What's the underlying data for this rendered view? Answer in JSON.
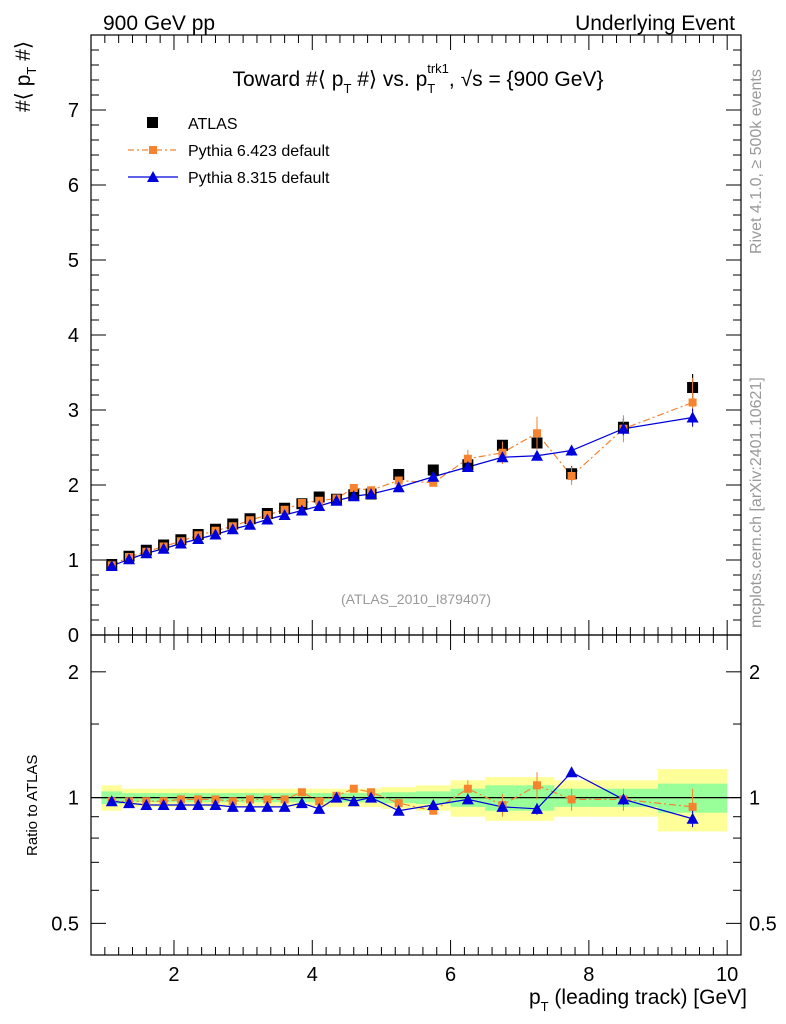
{
  "header": {
    "left_label": "900 GeV pp",
    "right_label": "Underlying Event"
  },
  "side_labels": {
    "rivet": "Rivet 4.1.0, ≥ 500k events",
    "mcplots": "mcplots.cern.ch [arXiv:2401.10621]"
  },
  "colors": {
    "atlas": "#000000",
    "pythia6": "#f5832f",
    "pythia8": "#0000dd",
    "band_outer": "#ffff99",
    "band_inner": "#99ff99"
  },
  "chart_data": [
    {
      "id": "main",
      "type": "scatter",
      "title": "Toward #⟨ p_T #⟩ vs. p_T^trk1, √s = {900 GeV}",
      "title_parts": {
        "a": "Toward #⟨ p",
        "b": " #⟩ vs. p",
        "c": ", ",
        "d": "s = {900 GeV}",
        "sub": "T",
        "sup": "trk1",
        "root": "√"
      },
      "ylabel_parts": {
        "a": "#⟨ p",
        "b": " #⟩",
        "sub": "T"
      },
      "xlim": [
        0.8,
        10.2
      ],
      "ylim": [
        0,
        8
      ],
      "yticks": [
        0,
        1,
        2,
        3,
        4,
        5,
        6,
        7
      ],
      "ytick_labels": [
        "0",
        "1",
        "2",
        "3",
        "4",
        "5",
        "6",
        "7"
      ],
      "watermark": "(ATLAS_2010_I879407)",
      "legend": [
        "ATLAS",
        "Pythia 6.423 default",
        "Pythia 8.315 default"
      ],
      "x": [
        1.1,
        1.35,
        1.6,
        1.85,
        2.1,
        2.35,
        2.6,
        2.85,
        3.1,
        3.35,
        3.6,
        3.85,
        4.1,
        4.35,
        4.6,
        4.85,
        5.25,
        5.75,
        6.25,
        6.75,
        7.25,
        7.75,
        8.5,
        9.5
      ],
      "series": [
        {
          "name": "ATLAS",
          "marker": "square",
          "values": [
            0.94,
            1.05,
            1.13,
            1.2,
            1.27,
            1.34,
            1.41,
            1.48,
            1.55,
            1.62,
            1.69,
            1.75,
            1.84,
            1.81,
            1.87,
            1.88,
            2.14,
            2.2,
            2.27,
            2.53,
            2.56,
            2.15,
            2.77,
            3.3
          ],
          "errors": [
            0.01,
            0.01,
            0.01,
            0.01,
            0.01,
            0.01,
            0.01,
            0.01,
            0.01,
            0.01,
            0.01,
            0.01,
            0.02,
            0.02,
            0.02,
            0.02,
            0.03,
            0.04,
            0.05,
            0.06,
            0.08,
            0.1,
            0.12,
            0.18
          ]
        },
        {
          "name": "Pythia 6.423 default",
          "marker": "square-small",
          "dash": true,
          "values": [
            0.93,
            1.04,
            1.11,
            1.18,
            1.25,
            1.33,
            1.39,
            1.45,
            1.53,
            1.6,
            1.67,
            1.76,
            1.79,
            1.82,
            1.96,
            1.93,
            2.06,
            2.03,
            2.35,
            2.43,
            2.69,
            2.12,
            2.75,
            3.1
          ],
          "errors": [
            0.01,
            0.01,
            0.01,
            0.01,
            0.01,
            0.01,
            0.01,
            0.01,
            0.01,
            0.01,
            0.02,
            0.02,
            0.02,
            0.02,
            0.03,
            0.03,
            0.04,
            0.05,
            0.12,
            0.15,
            0.22,
            0.12,
            0.18,
            0.33
          ]
        },
        {
          "name": "Pythia 8.315 default",
          "marker": "triangle",
          "values": [
            0.92,
            1.01,
            1.09,
            1.15,
            1.22,
            1.28,
            1.34,
            1.41,
            1.47,
            1.54,
            1.6,
            1.66,
            1.72,
            1.79,
            1.85,
            1.88,
            1.97,
            2.11,
            2.24,
            2.37,
            2.39,
            2.46,
            2.75,
            2.9
          ],
          "errors": [
            0.01,
            0.01,
            0.01,
            0.01,
            0.01,
            0.01,
            0.01,
            0.01,
            0.01,
            0.01,
            0.01,
            0.01,
            0.02,
            0.02,
            0.02,
            0.02,
            0.02,
            0.03,
            0.04,
            0.05,
            0.06,
            0.07,
            0.08,
            0.12
          ]
        }
      ]
    },
    {
      "id": "ratio",
      "type": "scatter",
      "ylabel": "Ratio to ATLAS",
      "xlabel_parts": {
        "a": "p",
        "b": " (leading track) [GeV]",
        "sub": "T"
      },
      "xlim": [
        0.8,
        10.2
      ],
      "ylim": [
        0.42,
        2.45
      ],
      "log_y": true,
      "yticks": [
        0.5,
        1,
        2
      ],
      "ytick_labels": [
        "0.5",
        "1",
        "2"
      ],
      "xticks": [
        2,
        4,
        6,
        8,
        10
      ],
      "xtick_labels": [
        "2",
        "4",
        "6",
        "8",
        "10"
      ],
      "bins": [
        [
          0.95,
          1.25
        ],
        [
          1.25,
          1.5
        ],
        [
          1.5,
          1.75
        ],
        [
          1.75,
          2.0
        ],
        [
          2.0,
          2.25
        ],
        [
          2.25,
          2.5
        ],
        [
          2.5,
          2.75
        ],
        [
          2.75,
          3.0
        ],
        [
          3.0,
          3.25
        ],
        [
          3.25,
          3.5
        ],
        [
          3.5,
          3.75
        ],
        [
          3.75,
          4.0
        ],
        [
          4.0,
          4.25
        ],
        [
          4.25,
          4.5
        ],
        [
          4.5,
          4.75
        ],
        [
          4.75,
          5.0
        ],
        [
          5.0,
          5.5
        ],
        [
          5.5,
          6.0
        ],
        [
          6.0,
          6.5
        ],
        [
          6.5,
          7.0
        ],
        [
          7.0,
          7.5
        ],
        [
          7.5,
          8.0
        ],
        [
          8.0,
          9.0
        ],
        [
          9.0,
          10.0
        ]
      ],
      "band_outer": [
        0.07,
        0.05,
        0.05,
        0.05,
        0.05,
        0.05,
        0.05,
        0.05,
        0.05,
        0.05,
        0.05,
        0.05,
        0.05,
        0.05,
        0.05,
        0.05,
        0.06,
        0.07,
        0.1,
        0.12,
        0.12,
        0.1,
        0.1,
        0.17
      ],
      "band_inner": [
        0.035,
        0.025,
        0.025,
        0.025,
        0.025,
        0.025,
        0.025,
        0.025,
        0.025,
        0.025,
        0.025,
        0.025,
        0.025,
        0.025,
        0.025,
        0.025,
        0.03,
        0.035,
        0.05,
        0.07,
        0.07,
        0.05,
        0.05,
        0.08
      ],
      "x": [
        1.1,
        1.35,
        1.6,
        1.85,
        2.1,
        2.35,
        2.6,
        2.85,
        3.1,
        3.35,
        3.6,
        3.85,
        4.1,
        4.35,
        4.6,
        4.85,
        5.25,
        5.75,
        6.25,
        6.75,
        7.25,
        7.75,
        8.5,
        9.5
      ],
      "series": [
        {
          "name": "Pythia 6.423 default",
          "values": [
            0.98,
            0.98,
            0.98,
            0.98,
            0.99,
            0.99,
            0.99,
            0.98,
            0.99,
            0.99,
            0.99,
            1.03,
            0.98,
            1.01,
            1.05,
            1.03,
            0.97,
            0.93,
            1.05,
            0.96,
            1.07,
            0.99,
            0.99,
            0.95
          ],
          "errors": [
            0.01,
            0.01,
            0.01,
            0.01,
            0.01,
            0.01,
            0.01,
            0.01,
            0.01,
            0.01,
            0.01,
            0.01,
            0.01,
            0.01,
            0.015,
            0.015,
            0.02,
            0.02,
            0.05,
            0.06,
            0.08,
            0.06,
            0.06,
            0.1
          ]
        },
        {
          "name": "Pythia 8.315 default",
          "values": [
            0.98,
            0.97,
            0.96,
            0.96,
            0.96,
            0.96,
            0.96,
            0.95,
            0.95,
            0.95,
            0.95,
            0.97,
            0.94,
            1.0,
            0.98,
            1.0,
            0.93,
            0.96,
            0.99,
            0.95,
            0.94,
            1.15,
            0.99,
            0.89
          ],
          "errors": [
            0.01,
            0.01,
            0.01,
            0.01,
            0.01,
            0.01,
            0.01,
            0.01,
            0.01,
            0.01,
            0.01,
            0.01,
            0.01,
            0.01,
            0.01,
            0.01,
            0.01,
            0.01,
            0.02,
            0.02,
            0.03,
            0.03,
            0.03,
            0.04
          ]
        }
      ]
    }
  ]
}
